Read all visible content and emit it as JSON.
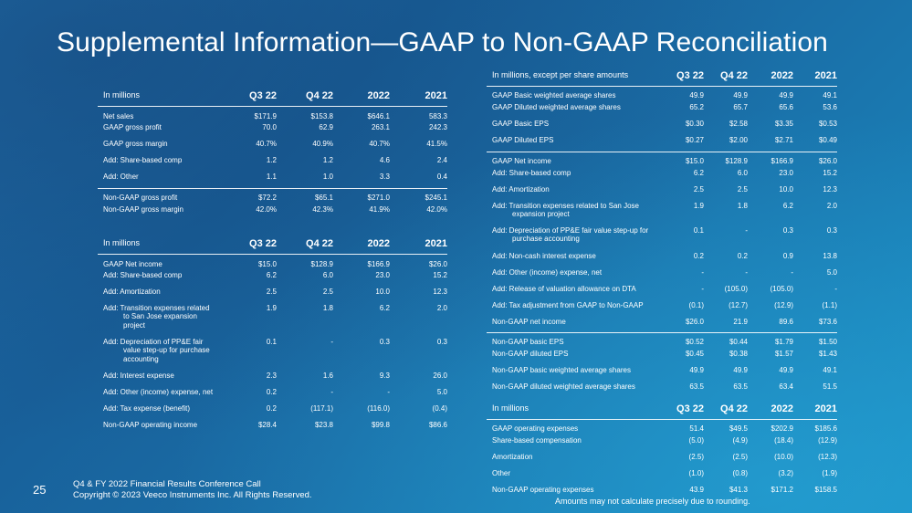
{
  "title": "Supplemental Information—GAAP to Non-GAAP Reconciliation",
  "table1": {
    "header": [
      "In millions",
      "Q3 22",
      "Q4 22",
      "2022",
      "2021"
    ],
    "rows": [
      {
        "label": "Net sales",
        "v": [
          "$171.9",
          "$153.8",
          "$646.1",
          "583.3"
        ]
      },
      {
        "label": "GAAP gross profit",
        "v": [
          "70.0",
          "62.9",
          "263.1",
          "242.3"
        ]
      },
      {
        "label": "GAAP gross margin",
        "v": [
          "40.7%",
          "40.9%",
          "40.7%",
          "41.5%"
        ]
      },
      {
        "label": "Add: Share-based comp",
        "v": [
          "1.2",
          "1.2",
          "4.6",
          "2.4"
        ]
      },
      {
        "label": "Add: Other",
        "v": [
          "1.1",
          "1.0",
          "3.3",
          "0.4"
        ]
      },
      {
        "label": "Non-GAAP gross profit",
        "v": [
          "$72.2",
          "$65.1",
          "$271.0",
          "$245.1"
        ]
      },
      {
        "label": "Non-GAAP gross margin",
        "v": [
          "42.0%",
          "42.3%",
          "41.9%",
          "42.0%"
        ]
      }
    ]
  },
  "table2": {
    "header": [
      "In millions",
      "Q3 22",
      "Q4 22",
      "2022",
      "2021"
    ],
    "rows": [
      {
        "label": "GAAP Net income",
        "v": [
          "$15.0",
          "$128.9",
          "$166.9",
          "$26.0"
        ]
      },
      {
        "label": "Add: Share-based comp",
        "v": [
          "6.2",
          "6.0",
          "23.0",
          "15.2"
        ]
      },
      {
        "label": "Add: Amortization",
        "v": [
          "2.5",
          "2.5",
          "10.0",
          "12.3"
        ]
      },
      {
        "label": "Add: Transition expenses related",
        "label2": "to San Jose expansion",
        "label3": "project",
        "v": [
          "1.9",
          "1.8",
          "6.2",
          "2.0"
        ]
      },
      {
        "label": "Add: Depreciation of PP&E fair",
        "label2": "value step-up for purchase",
        "label3": "accounting",
        "v": [
          "0.1",
          "-",
          "0.3",
          "0.3"
        ]
      },
      {
        "label": "Add: Interest expense",
        "v": [
          "2.3",
          "1.6",
          "9.3",
          "26.0"
        ]
      },
      {
        "label": "Add: Other (income) expense, net",
        "v": [
          "0.2",
          "-",
          "-",
          "5.0"
        ]
      },
      {
        "label": "Add: Tax expense (benefit)",
        "v": [
          "0.2",
          "(117.1)",
          "(116.0)",
          "(0.4)"
        ]
      },
      {
        "label": "Non-GAAP operating income",
        "v": [
          "$28.4",
          "$23.8",
          "$99.8",
          "$86.6"
        ]
      }
    ]
  },
  "table3": {
    "header": [
      "In millions, except per share amounts",
      "Q3 22",
      "Q4 22",
      "2022",
      "2021"
    ],
    "rows": [
      {
        "label": "GAAP Basic weighted average shares",
        "v": [
          "49.9",
          "49.9",
          "49.9",
          "49.1"
        ]
      },
      {
        "label": "GAAP Diluted weighted average shares",
        "v": [
          "65.2",
          "65.7",
          "65.6",
          "53.6"
        ]
      },
      {
        "label": "GAAP Basic EPS",
        "v": [
          "$0.30",
          "$2.58",
          "$3.35",
          "$0.53"
        ]
      },
      {
        "label": "GAAP Diluted EPS",
        "v": [
          "$0.27",
          "$2.00",
          "$2.71",
          "$0.49"
        ]
      },
      {
        "label": "GAAP Net income",
        "v": [
          "$15.0",
          "$128.9",
          "$166.9",
          "$26.0"
        ]
      },
      {
        "label": "Add: Share-based comp",
        "v": [
          "6.2",
          "6.0",
          "23.0",
          "15.2"
        ]
      },
      {
        "label": "Add: Amortization",
        "v": [
          "2.5",
          "2.5",
          "10.0",
          "12.3"
        ]
      },
      {
        "label": "Add: Transition expenses related to San Jose",
        "label2": "expansion project",
        "v": [
          "1.9",
          "1.8",
          "6.2",
          "2.0"
        ]
      },
      {
        "label": "Add: Depreciation of PP&E fair value step-up for",
        "label2": "purchase accounting",
        "v": [
          "0.1",
          "-",
          "0.3",
          "0.3"
        ]
      },
      {
        "label": "Add: Non-cash interest expense",
        "v": [
          "0.2",
          "0.2",
          "0.9",
          "13.8"
        ]
      },
      {
        "label": "Add: Other (income) expense, net",
        "v": [
          "-",
          "-",
          "-",
          "5.0"
        ]
      },
      {
        "label": "Add: Release of valuation allowance on DTA",
        "v": [
          "-",
          "(105.0)",
          "(105.0)",
          "-"
        ]
      },
      {
        "label": "Add: Tax adjustment from GAAP to Non-GAAP",
        "v": [
          "(0.1)",
          "(12.7)",
          "(12.9)",
          "(1.1)"
        ]
      },
      {
        "label": "Non-GAAP net income",
        "v": [
          "$26.0",
          "21.9",
          "89.6",
          "$73.6"
        ]
      },
      {
        "label": "Non-GAAP basic EPS",
        "v": [
          "$0.52",
          "$0.44",
          "$1.79",
          "$1.50"
        ]
      },
      {
        "label": "Non-GAAP diluted EPS",
        "v": [
          "$0.45",
          "$0.38",
          "$1.57",
          "$1.43"
        ]
      },
      {
        "label": "Non-GAAP basic weighted average shares",
        "v": [
          "49.9",
          "49.9",
          "49.9",
          "49.1"
        ]
      },
      {
        "label": "Non-GAAP diluted weighted average shares",
        "v": [
          "63.5",
          "63.5",
          "63.4",
          "51.5"
        ]
      }
    ]
  },
  "table4": {
    "header": [
      "In millions",
      "Q3 22",
      "Q4 22",
      "2022",
      "2021"
    ],
    "rows": [
      {
        "label": "GAAP operating expenses",
        "v": [
          "51.4",
          "$49.5",
          "$202.9",
          "$185.6"
        ]
      },
      {
        "label": "Share-based compensation",
        "v": [
          "(5.0)",
          "(4.9)",
          "(18.4)",
          "(12.9)"
        ]
      },
      {
        "label": "Amortization",
        "v": [
          "(2.5)",
          "(2.5)",
          "(10.0)",
          "(12.3)"
        ]
      },
      {
        "label": "Other",
        "v": [
          "(1.0)",
          "(0.8)",
          "(3.2)",
          "(1.9)"
        ]
      },
      {
        "label": "Non-GAAP operating expenses",
        "v": [
          "43.9",
          "$41.3",
          "$171.2",
          "$158.5"
        ]
      }
    ]
  },
  "footer": {
    "page_number": "25",
    "line1": "Q4 & FY 2022 Financial Results Conference Call",
    "line2": "Copyright © 2023 Veeco Instruments Inc. All Rights Reserved.",
    "note": "Amounts may not calculate precisely due to rounding."
  },
  "colors": {
    "background": "#1a6aa6",
    "text": "#ffffff"
  }
}
